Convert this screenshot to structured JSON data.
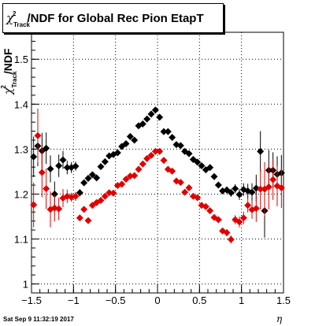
{
  "chart_data": {
    "type": "scatter",
    "title": {
      "symbol": "χ",
      "sup": "2",
      "sub": "Track",
      "rest": "/NDF for Global Rec Pion EtapT"
    },
    "ylabel": {
      "symbol": "χ",
      "sup": "2",
      "sub": "Track",
      "rest": "/NDF"
    },
    "xlabel": "η",
    "xlim": [
      -1.5,
      1.5
    ],
    "ylim": [
      0.98,
      1.56
    ],
    "x_ticks": [
      "−1.5",
      "−1",
      "−0.5",
      "0",
      "0.5",
      "1",
      "1.5"
    ],
    "x_tick_values": [
      -1.5,
      -1,
      -0.5,
      0,
      0.5,
      1,
      1.5
    ],
    "y_ticks": [
      "1",
      "1.1",
      "1.2",
      "1.3",
      "1.4",
      "1.5"
    ],
    "y_tick_values": [
      1,
      1.1,
      1.2,
      1.3,
      1.4,
      1.5
    ],
    "grid": true,
    "colors": {
      "black": "#000000",
      "red": "#e00000"
    },
    "series": [
      {
        "color": "black",
        "x": [
          -1.475,
          -1.425,
          -1.375,
          -1.325,
          -1.275,
          -1.225,
          -1.175,
          -1.125,
          -1.075,
          -1.025,
          -0.975,
          -0.925,
          -0.875,
          -0.825,
          -0.775,
          -0.725,
          -0.675,
          -0.625,
          -0.575,
          -0.525,
          -0.475,
          -0.425,
          -0.375,
          -0.325,
          -0.275,
          -0.225,
          -0.175,
          -0.125,
          -0.075,
          -0.025,
          0.025,
          0.075,
          0.125,
          0.175,
          0.225,
          0.275,
          0.325,
          0.375,
          0.425,
          0.475,
          0.525,
          0.575,
          0.625,
          0.675,
          0.725,
          0.775,
          0.825,
          0.875,
          0.925,
          0.975,
          1.025,
          1.075,
          1.125,
          1.175,
          1.225,
          1.275,
          1.325,
          1.375,
          1.425,
          1.475
        ],
        "y": [
          1.283,
          1.307,
          1.296,
          1.302,
          1.256,
          1.2,
          1.263,
          1.276,
          1.259,
          1.259,
          1.262,
          1.203,
          1.225,
          1.235,
          1.243,
          1.236,
          1.261,
          1.272,
          1.285,
          1.288,
          1.292,
          1.306,
          1.312,
          1.328,
          1.32,
          1.352,
          1.356,
          1.367,
          1.378,
          1.387,
          1.371,
          1.339,
          1.339,
          1.326,
          1.31,
          1.308,
          1.295,
          1.29,
          1.277,
          1.271,
          1.263,
          1.254,
          1.259,
          1.239,
          1.22,
          1.207,
          1.209,
          1.203,
          1.212,
          1.199,
          1.21,
          1.207,
          1.204,
          1.213,
          1.295,
          1.163,
          1.253,
          1.253,
          1.244,
          1.247
        ],
        "err": [
          0.045,
          0.045,
          0.04,
          0.035,
          0.03,
          0.028,
          0.025,
          0.02,
          0.015,
          0.012,
          0.01,
          0.008,
          0.006,
          0.006,
          0.005,
          0.005,
          0.004,
          0.004,
          0.004,
          0.004,
          0.004,
          0.004,
          0.004,
          0.004,
          0.004,
          0.004,
          0.004,
          0.004,
          0.004,
          0.004,
          0.004,
          0.004,
          0.004,
          0.004,
          0.004,
          0.004,
          0.004,
          0.004,
          0.004,
          0.004,
          0.004,
          0.004,
          0.005,
          0.005,
          0.006,
          0.007,
          0.008,
          0.009,
          0.01,
          0.012,
          0.014,
          0.016,
          0.02,
          0.03,
          0.045,
          0.06,
          0.045,
          0.04,
          0.04,
          0.04
        ]
      },
      {
        "color": "red",
        "x": [
          -1.475,
          -1.425,
          -1.375,
          -1.325,
          -1.275,
          -1.225,
          -1.175,
          -1.125,
          -1.075,
          -1.025,
          -0.975,
          -0.925,
          -0.875,
          -0.825,
          -0.775,
          -0.725,
          -0.675,
          -0.625,
          -0.575,
          -0.525,
          -0.475,
          -0.425,
          -0.375,
          -0.325,
          -0.275,
          -0.225,
          -0.175,
          -0.125,
          -0.075,
          -0.025,
          0.025,
          0.075,
          0.125,
          0.175,
          0.225,
          0.275,
          0.325,
          0.375,
          0.425,
          0.475,
          0.525,
          0.575,
          0.625,
          0.675,
          0.725,
          0.775,
          0.825,
          0.875,
          0.925,
          0.975,
          1.025,
          1.075,
          1.125,
          1.175,
          1.225,
          1.275,
          1.325,
          1.375,
          1.425,
          1.475
        ],
        "y": [
          1.176,
          1.33,
          1.248,
          1.212,
          1.166,
          1.169,
          1.167,
          1.191,
          1.195,
          1.193,
          1.195,
          1.147,
          1.166,
          1.141,
          1.175,
          1.181,
          1.186,
          1.195,
          1.203,
          1.202,
          1.219,
          1.222,
          1.233,
          1.24,
          1.241,
          1.255,
          1.267,
          1.279,
          1.286,
          1.295,
          1.295,
          1.275,
          1.255,
          1.251,
          1.229,
          1.226,
          1.204,
          1.214,
          1.195,
          1.192,
          1.175,
          1.172,
          1.163,
          1.148,
          1.143,
          1.118,
          1.114,
          1.099,
          1.143,
          1.138,
          1.147,
          1.175,
          1.165,
          1.168,
          1.211,
          1.211,
          1.216,
          1.232,
          1.218,
          1.214
        ],
        "err": [
          0.05,
          0.06,
          0.055,
          0.045,
          0.04,
          0.03,
          0.025,
          0.02,
          0.015,
          0.01,
          0.01,
          0.006,
          0.005,
          0.005,
          0.004,
          0.004,
          0.004,
          0.004,
          0.004,
          0.004,
          0.004,
          0.004,
          0.004,
          0.004,
          0.004,
          0.004,
          0.004,
          0.004,
          0.004,
          0.004,
          0.004,
          0.004,
          0.004,
          0.004,
          0.004,
          0.004,
          0.004,
          0.004,
          0.004,
          0.004,
          0.004,
          0.004,
          0.005,
          0.005,
          0.006,
          0.007,
          0.008,
          0.009,
          0.01,
          0.012,
          0.014,
          0.016,
          0.02,
          0.03,
          0.045,
          0.06,
          0.05,
          0.045,
          0.045,
          0.045
        ]
      }
    ]
  },
  "timestamp": "Sat Sep  9 11:32:19 2017"
}
